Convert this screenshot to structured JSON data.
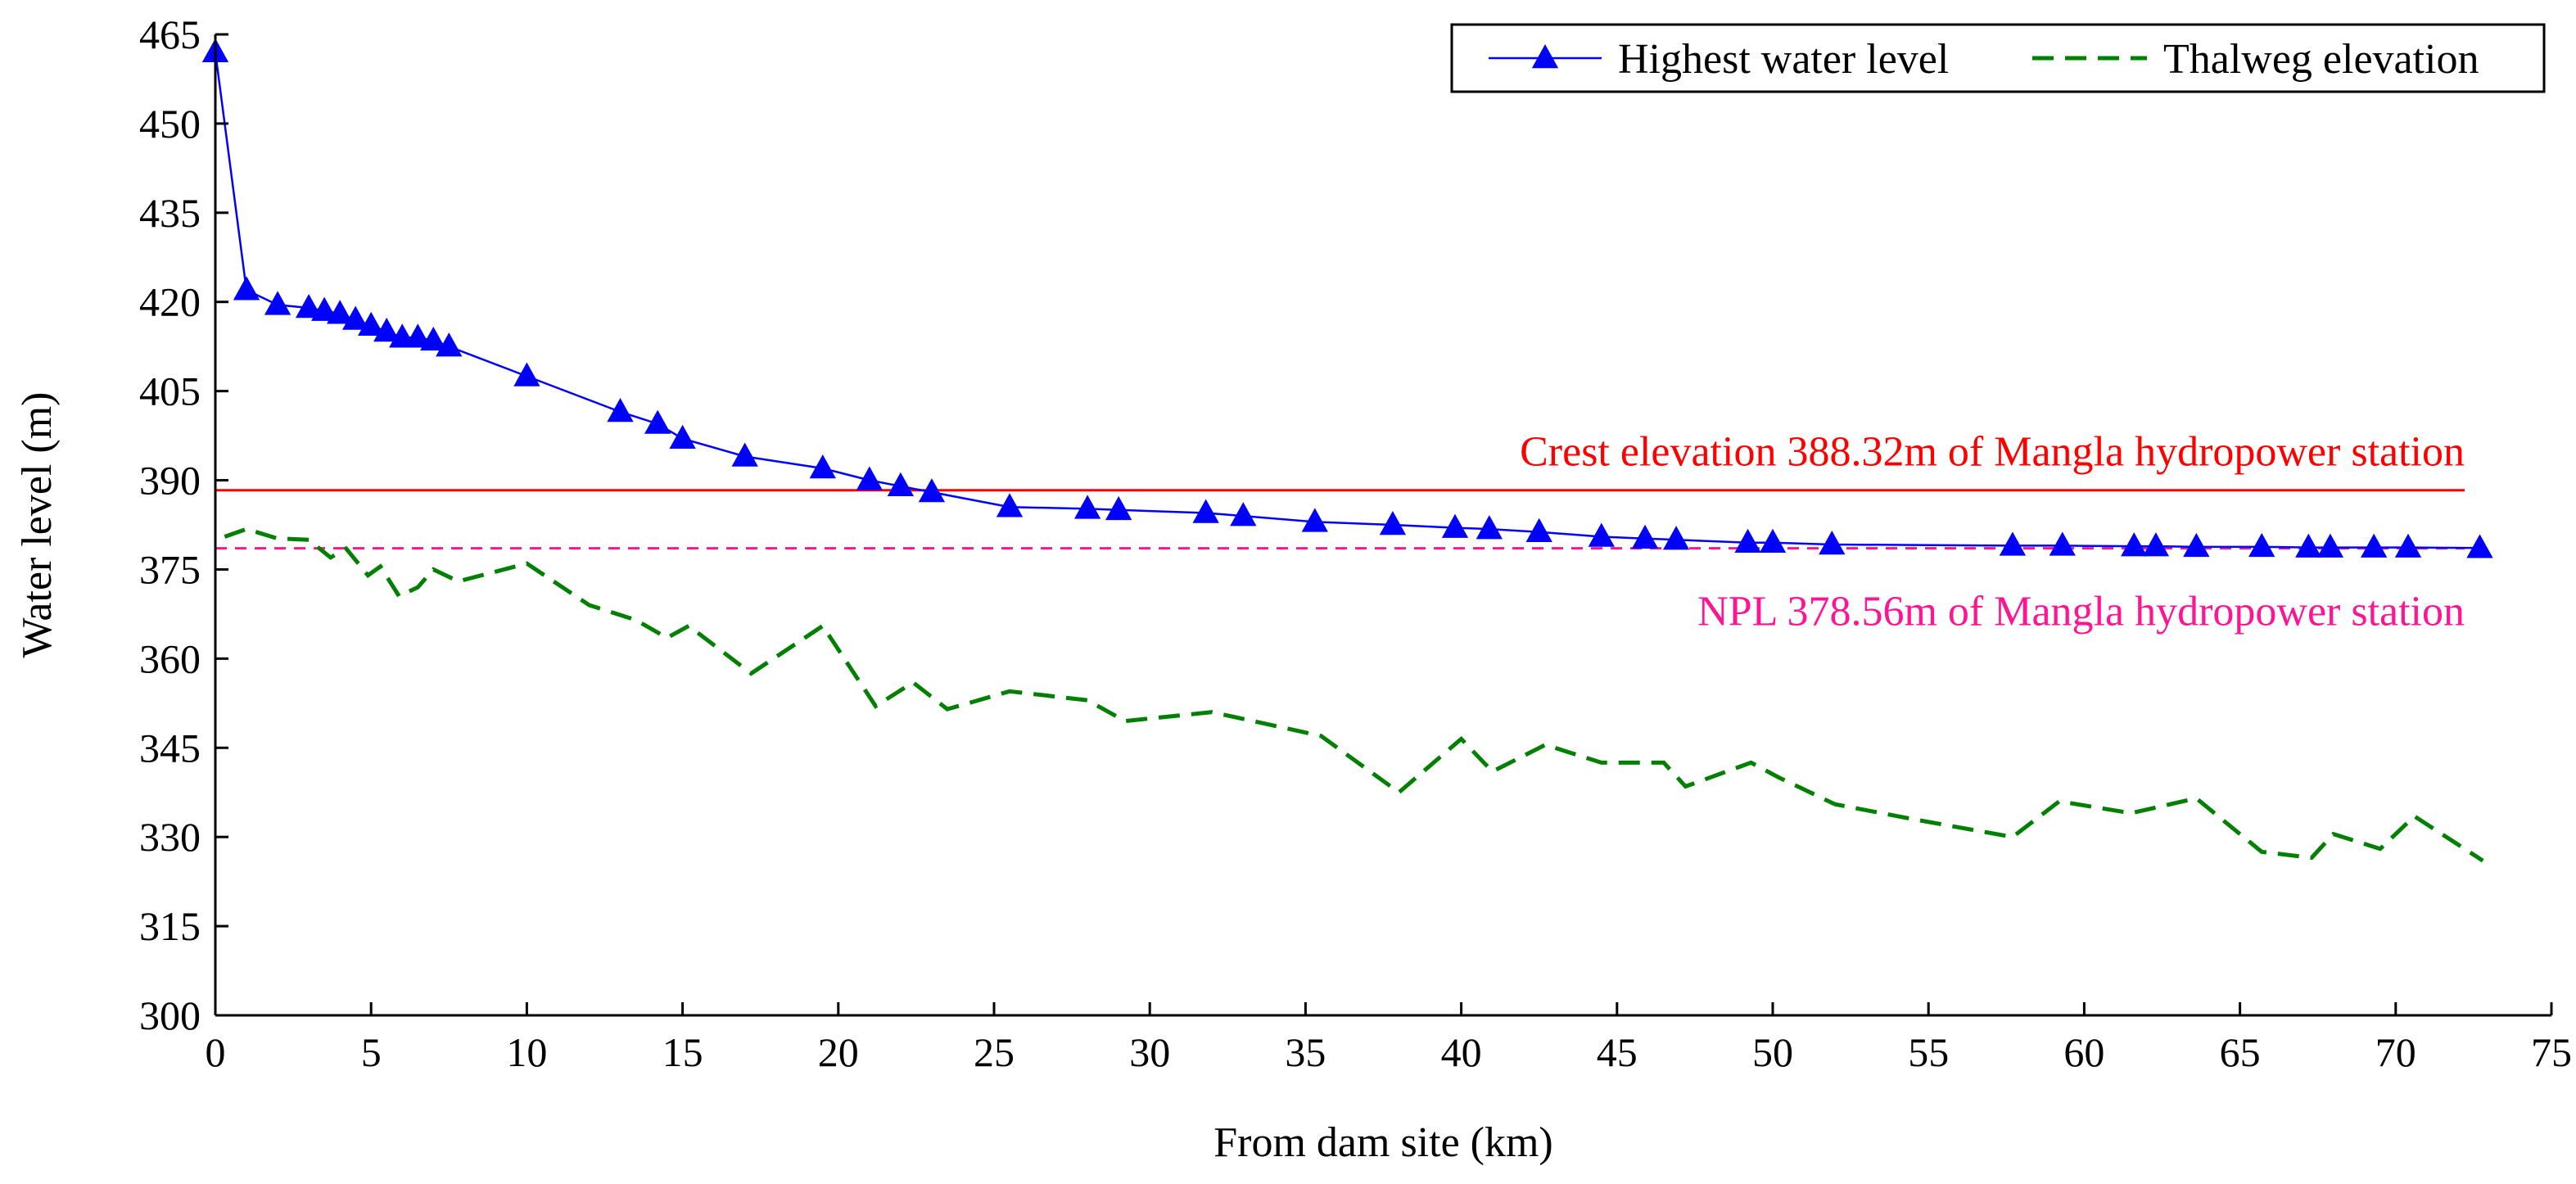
{
  "chart_data": {
    "type": "line",
    "title": "",
    "xlabel": "From dam site (km)",
    "ylabel": "Water level (m)",
    "xlim": [
      0,
      75
    ],
    "ylim": [
      300,
      465
    ],
    "xticks": [
      0,
      5,
      10,
      15,
      20,
      25,
      30,
      35,
      40,
      45,
      50,
      55,
      60,
      65,
      70,
      75
    ],
    "yticks": [
      300,
      315,
      330,
      345,
      360,
      375,
      390,
      405,
      420,
      435,
      450,
      465
    ],
    "legend_position": "top-right",
    "series": [
      {
        "name": "Highest water level",
        "color": "#0000ff",
        "line_style": "solid",
        "marker": "triangle",
        "x": [
          0,
          1,
          2,
          3,
          3.5,
          4,
          4.5,
          5,
          5.5,
          6,
          6.5,
          7,
          7.5,
          10,
          13,
          14.2,
          15,
          17,
          19.5,
          21,
          22,
          23,
          25.5,
          28,
          29,
          31.8,
          33,
          35.3,
          37.8,
          39.8,
          40.9,
          42.5,
          44.5,
          45.9,
          46.9,
          49.2,
          50,
          51.9,
          57.7,
          59.3,
          61.6,
          62.3,
          63.6,
          65.7,
          67.2,
          67.9,
          69.3,
          70.4,
          72.7
        ],
        "y": [
          462,
          422,
          419.5,
          419,
          418.5,
          418,
          417,
          416,
          415,
          414,
          414,
          413.5,
          412.5,
          407.5,
          401.5,
          399.5,
          397,
          394,
          392,
          390,
          389,
          388,
          385.5,
          385.2,
          385,
          384.5,
          384,
          383,
          382.5,
          382,
          381.8,
          381.3,
          380.5,
          380.2,
          380,
          379.5,
          379.5,
          379.2,
          379,
          379,
          378.9,
          378.9,
          378.8,
          378.8,
          378.7,
          378.7,
          378.7,
          378.7,
          378.6
        ]
      },
      {
        "name": "Thalweg elevation",
        "color": "#008000",
        "line_style": "dashed",
        "marker": "none",
        "x": [
          0.3,
          1,
          2,
          3,
          3.7,
          4.2,
          4.9,
          5.3,
          5.9,
          6.5,
          7,
          7.8,
          10,
          12,
          13.5,
          14.5,
          15.2,
          17.2,
          19.5,
          21.2,
          22.4,
          23.5,
          25.5,
          28,
          29.2,
          32,
          35.5,
          38,
          40,
          41,
          42.7,
          44.5,
          46.5,
          47.2,
          49.3,
          50.2,
          52,
          54.5,
          57.7,
          59.2,
          61.5,
          63.6,
          65.7,
          67.3,
          68,
          69.5,
          70.6,
          72.8
        ],
        "y": [
          380.5,
          381.8,
          380.2,
          380,
          377,
          378.5,
          374,
          375.5,
          370.5,
          372,
          375,
          373,
          376,
          369,
          366.5,
          363.5,
          365.5,
          357.5,
          365.5,
          352,
          356,
          351.5,
          354.5,
          353,
          349.5,
          351,
          347,
          337.5,
          346.5,
          341,
          345.5,
          342.5,
          342.5,
          338.5,
          342.5,
          340,
          335.5,
          333,
          330,
          336,
          334,
          336.5,
          327.5,
          326.5,
          330.5,
          328,
          333.5,
          326
        ]
      }
    ],
    "reference_lines": [
      {
        "name": "Crest elevation",
        "y": 388.32,
        "color": "#ff0000",
        "line_style": "solid",
        "label": "Crest elevation 388.32m of Mangla hydropower station",
        "label_position": "above-right"
      },
      {
        "name": "NPL",
        "y": 378.56,
        "color": "#ff1493",
        "line_style": "dashed",
        "label": "NPL 378.56m of Mangla hydropower station",
        "label_position": "below-right"
      }
    ]
  }
}
